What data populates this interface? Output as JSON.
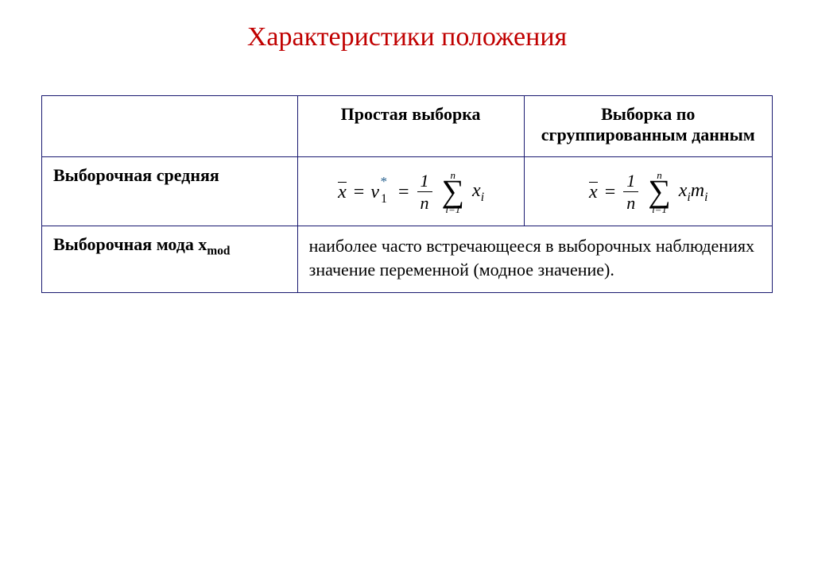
{
  "page": {
    "title": "Характеристики положения",
    "title_color": "#c00000",
    "title_fontsize": 34
  },
  "table": {
    "border_color": "#191970",
    "columns": {
      "c0_width_pct": 35,
      "c1_width_pct": 31,
      "c2_width_pct": 34
    },
    "header": {
      "c0": "",
      "c1": "Простая выборка",
      "c2": "Выборка по сгруппированным данным"
    },
    "rows": {
      "mean": {
        "label": "Выборочная средняя",
        "formula_simple": {
          "lhs_var": "x",
          "lhs_bar": true,
          "eq1_var": "ν",
          "eq1_sub": "1",
          "eq1_sup": "*",
          "frac_num": "1",
          "frac_den": "n",
          "sum_upper": "n",
          "sum_lower": "i=1",
          "term": "x",
          "term_sub": "i"
        },
        "formula_grouped": {
          "lhs_var": "x",
          "lhs_bar": true,
          "frac_num": "1",
          "frac_den": "n",
          "sum_upper": "n",
          "sum_lower": "i=1",
          "term1": "x",
          "term1_sub": "i",
          "term2": "m",
          "term2_sub": "i"
        }
      },
      "mode": {
        "label_pre": "Выборочная мода x",
        "label_sub": "mod",
        "definition": "наиболее часто  встречающееся в выборочных наблюдениях значение переменной (модное значение)."
      }
    }
  },
  "style": {
    "body_font": "Times New Roman",
    "body_fontsize": 22,
    "text_color": "#000000",
    "background_color": "#ffffff"
  }
}
